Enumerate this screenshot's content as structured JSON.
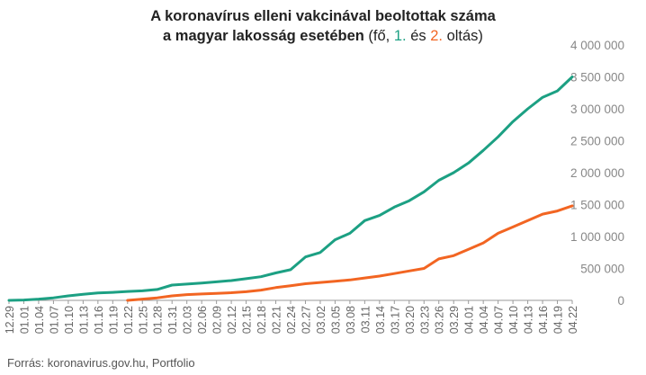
{
  "title": {
    "line1": "A koronavírus elleni vakcinával beoltottak száma",
    "line2_bold": "a magyar lakosság esetében",
    "line2_prefix": " (fő, ",
    "dose1_label": "1.",
    "line2_mid": " és ",
    "dose2_label": "2.",
    "line2_suffix": " oltás)"
  },
  "source": "Forrás: koronavirus.gov.hu, Portfolio",
  "chart_data": {
    "type": "line",
    "ylim": [
      0,
      4000000
    ],
    "y_ticks": [
      0,
      500000,
      1000000,
      1500000,
      2000000,
      2500000,
      3000000,
      3500000,
      4000000
    ],
    "y_tick_labels": [
      "0",
      "500 000",
      "1 000 000",
      "1 500 000",
      "2 000 000",
      "2 500 000",
      "3 000 000",
      "3 500 000",
      "4 000 000"
    ],
    "x_tick_labels": [
      "12.29",
      "01.01",
      "01.04",
      "01.07",
      "01.10",
      "01.13",
      "01.16",
      "01.19",
      "01.22",
      "01.25",
      "01.28",
      "01.31",
      "02.03",
      "02.06",
      "02.09",
      "02.12",
      "02.15",
      "02.18",
      "02.21",
      "02.24",
      "02.27",
      "03.02",
      "03.05",
      "03.08",
      "03.11",
      "03.14",
      "03.17",
      "03.20",
      "03.23",
      "03.26",
      "03.29",
      "04.01",
      "04.04",
      "04.07",
      "04.10",
      "04.13",
      "04.16",
      "04.19",
      "04.22"
    ],
    "grid": false,
    "series": [
      {
        "name": "1.",
        "color": "#1ca083",
        "points": [
          [
            "12.29",
            0
          ],
          [
            "01.01",
            5000
          ],
          [
            "01.04",
            20000
          ],
          [
            "01.07",
            40000
          ],
          [
            "01.10",
            70000
          ],
          [
            "01.13",
            95000
          ],
          [
            "01.16",
            115000
          ],
          [
            "01.19",
            125000
          ],
          [
            "01.22",
            140000
          ],
          [
            "01.25",
            150000
          ],
          [
            "01.28",
            170000
          ],
          [
            "01.31",
            240000
          ],
          [
            "02.03",
            255000
          ],
          [
            "02.06",
            270000
          ],
          [
            "02.09",
            290000
          ],
          [
            "02.12",
            310000
          ],
          [
            "02.15",
            340000
          ],
          [
            "02.18",
            370000
          ],
          [
            "02.21",
            430000
          ],
          [
            "02.24",
            480000
          ],
          [
            "02.27",
            680000
          ],
          [
            "03.02",
            750000
          ],
          [
            "03.05",
            950000
          ],
          [
            "03.08",
            1050000
          ],
          [
            "03.11",
            1250000
          ],
          [
            "03.14",
            1330000
          ],
          [
            "03.17",
            1460000
          ],
          [
            "03.20",
            1560000
          ],
          [
            "03.23",
            1700000
          ],
          [
            "03.26",
            1880000
          ],
          [
            "03.29",
            2000000
          ],
          [
            "04.01",
            2150000
          ],
          [
            "04.04",
            2350000
          ],
          [
            "04.07",
            2560000
          ],
          [
            "04.10",
            2800000
          ],
          [
            "04.13",
            3000000
          ],
          [
            "04.16",
            3180000
          ],
          [
            "04.19",
            3280000
          ],
          [
            "04.22",
            3500000
          ]
        ]
      },
      {
        "name": "2.",
        "color": "#f26522",
        "points": [
          [
            "01.22",
            0
          ],
          [
            "01.25",
            20000
          ],
          [
            "01.28",
            40000
          ],
          [
            "01.31",
            70000
          ],
          [
            "02.03",
            90000
          ],
          [
            "02.06",
            100000
          ],
          [
            "02.09",
            110000
          ],
          [
            "02.12",
            120000
          ],
          [
            "02.15",
            135000
          ],
          [
            "02.18",
            160000
          ],
          [
            "02.21",
            200000
          ],
          [
            "02.24",
            230000
          ],
          [
            "02.27",
            260000
          ],
          [
            "03.02",
            280000
          ],
          [
            "03.05",
            300000
          ],
          [
            "03.08",
            320000
          ],
          [
            "03.11",
            350000
          ],
          [
            "03.14",
            380000
          ],
          [
            "03.17",
            420000
          ],
          [
            "03.20",
            460000
          ],
          [
            "03.23",
            500000
          ],
          [
            "03.26",
            650000
          ],
          [
            "03.29",
            700000
          ],
          [
            "04.01",
            800000
          ],
          [
            "04.04",
            900000
          ],
          [
            "04.07",
            1050000
          ],
          [
            "04.10",
            1150000
          ],
          [
            "04.13",
            1250000
          ],
          [
            "04.16",
            1350000
          ],
          [
            "04.19",
            1400000
          ],
          [
            "04.22",
            1480000
          ]
        ]
      }
    ]
  }
}
